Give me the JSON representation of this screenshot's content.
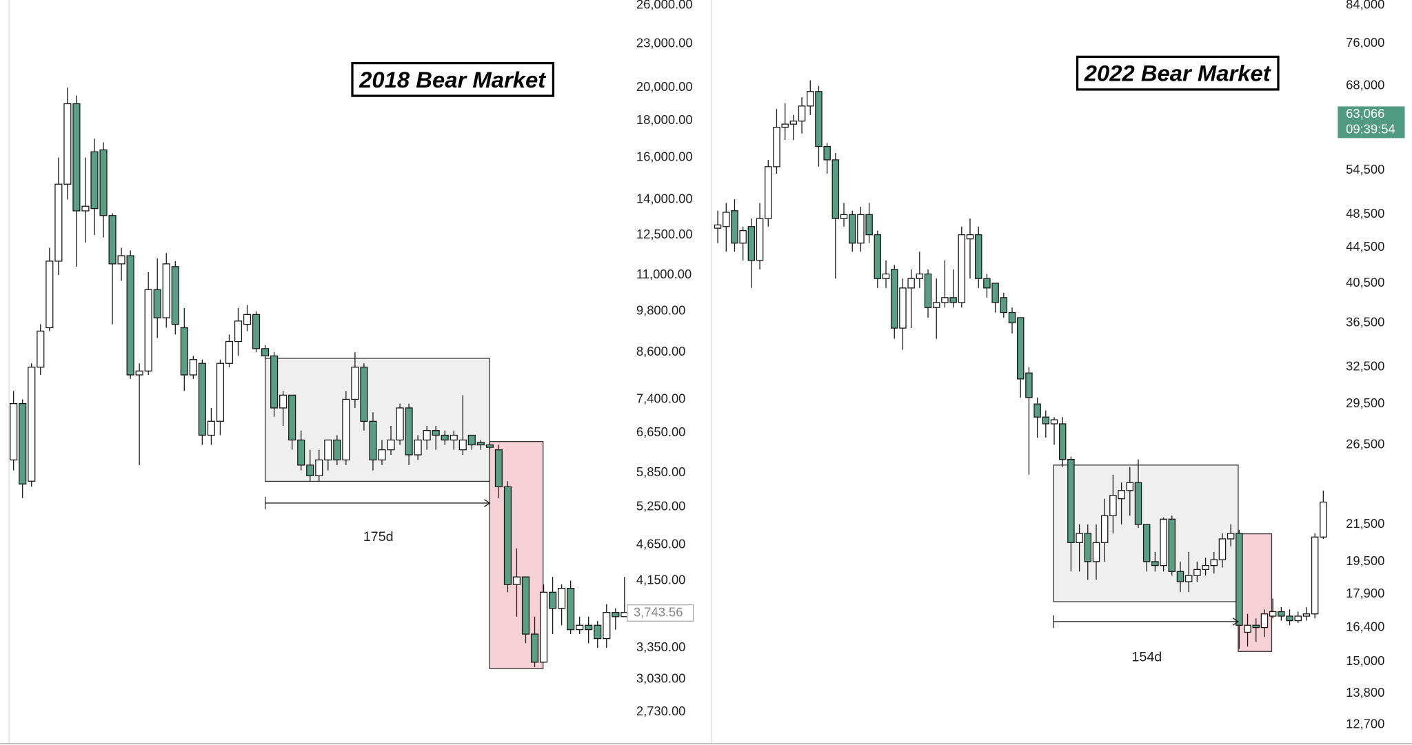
{
  "chart_data": [
    {
      "type": "candlestick",
      "title": "2018 Bear Market",
      "log_scale": true,
      "down_color": "#5a9e86",
      "up_color": "#ffffff",
      "ylim": [
        2460,
        26450
      ],
      "yticks": [
        {
          "value": 26000,
          "label": "26,000.00"
        },
        {
          "value": 23000,
          "label": "23,000.00"
        },
        {
          "value": 20000,
          "label": "20,000.00"
        },
        {
          "value": 18000,
          "label": "18,000.00"
        },
        {
          "value": 16000,
          "label": "16,000.00"
        },
        {
          "value": 14000,
          "label": "14,000.00"
        },
        {
          "value": 12500,
          "label": "12,500.00"
        },
        {
          "value": 11000,
          "label": "11,000.00"
        },
        {
          "value": 9800,
          "label": "9,800.00"
        },
        {
          "value": 8600,
          "label": "8,600.00"
        },
        {
          "value": 7400,
          "label": "7,400.00"
        },
        {
          "value": 6650,
          "label": "6,650.00"
        },
        {
          "value": 5850,
          "label": "5,850.00"
        },
        {
          "value": 5250,
          "label": "5,250.00"
        },
        {
          "value": 4650,
          "label": "4,650.00"
        },
        {
          "value": 4150,
          "label": "4,150.00"
        },
        {
          "value": 3350,
          "label": "3,350.00"
        },
        {
          "value": 3030,
          "label": "3,030.00"
        },
        {
          "value": 2730,
          "label": "2,730.00"
        }
      ],
      "last_price": {
        "value": 3743.56,
        "label": "3,743.56"
      },
      "range_label": "175d",
      "open": [
        6100,
        7300,
        5700,
        8200,
        9300,
        11500,
        14700,
        19000,
        13500,
        16300,
        16400,
        13300,
        11400,
        11700,
        8000,
        8100,
        10500,
        9600,
        11300,
        9300,
        8000,
        8300,
        6600,
        6900,
        8300,
        8900,
        9400,
        9700,
        8700,
        8500,
        7200,
        7500,
        6500,
        6000,
        5800,
        6100,
        6500,
        6100,
        7400,
        8200,
        6900,
        6100,
        6300,
        6500,
        7200,
        6200,
        6500,
        6700,
        6600,
        6500,
        6300,
        6600,
        6450,
        6400,
        6300,
        5600,
        4100,
        4200,
        3500,
        3200,
        4000,
        3800,
        4050,
        3550,
        3600,
        3600,
        3450,
        3750,
        3700
      ],
      "high": [
        7600,
        7400,
        8300,
        9400,
        12000,
        16000,
        20000,
        19500,
        16000,
        17000,
        16800,
        13400,
        12000,
        11900,
        8300,
        11100,
        11600,
        11800,
        11500,
        9900,
        8500,
        8400,
        7200,
        8400,
        9100,
        9900,
        10000,
        9800,
        8800,
        8600,
        7600,
        7500,
        6700,
        6300,
        6300,
        6500,
        6600,
        7600,
        8600,
        8300,
        7100,
        6500,
        6800,
        7300,
        7300,
        6600,
        6800,
        6800,
        6700,
        6700,
        7500,
        6600,
        6500,
        6450,
        6400,
        5700,
        4600,
        4200,
        3700,
        4100,
        4200,
        4100,
        4150,
        3700,
        3700,
        3650,
        3850,
        3800,
        4200
      ],
      "low": [
        5900,
        5400,
        5600,
        8000,
        9200,
        11000,
        14000,
        11300,
        12200,
        12500,
        12400,
        9400,
        10800,
        7900,
        6000,
        8000,
        9000,
        9300,
        9100,
        7600,
        7900,
        6400,
        6400,
        6600,
        8200,
        8500,
        9200,
        8600,
        8400,
        7000,
        6800,
        6300,
        5900,
        5700,
        5700,
        5900,
        6000,
        6000,
        7200,
        6700,
        5900,
        6000,
        6200,
        6400,
        6000,
        6100,
        6300,
        6300,
        6400,
        6300,
        6200,
        6300,
        6300,
        6300,
        5400,
        4000,
        3700,
        3400,
        3150,
        3200,
        3500,
        3600,
        3500,
        3500,
        3400,
        3350,
        3350,
        3550,
        3700
      ],
      "close": [
        7300,
        5650,
        8200,
        9200,
        11500,
        14700,
        19000,
        13500,
        13700,
        13600,
        13300,
        11400,
        11700,
        8000,
        8100,
        10500,
        9600,
        11400,
        9400,
        8000,
        8400,
        6600,
        6900,
        8300,
        8900,
        9500,
        9700,
        8700,
        8500,
        7200,
        7500,
        6500,
        6000,
        5800,
        6100,
        6500,
        6100,
        7400,
        8200,
        6900,
        6100,
        6300,
        6500,
        7200,
        6200,
        6500,
        6700,
        6600,
        6500,
        6600,
        6500,
        6400,
        6400,
        6350,
        5600,
        4100,
        4200,
        3500,
        3200,
        4000,
        3800,
        4050,
        3550,
        3600,
        3550,
        3450,
        3750,
        3700,
        3750
      ]
    },
    {
      "type": "candlestick",
      "title": "2022 Bear Market",
      "log_scale": true,
      "down_color": "#5a9e86",
      "up_color": "#ffffff",
      "ylim": [
        12060,
        85200
      ],
      "yticks": [
        {
          "value": 84000,
          "label": "84,000"
        },
        {
          "value": 76000,
          "label": "76,000"
        },
        {
          "value": 68000,
          "label": "68,000"
        },
        {
          "value": 54500,
          "label": "54,500"
        },
        {
          "value": 48500,
          "label": "48,500"
        },
        {
          "value": 44500,
          "label": "44,500"
        },
        {
          "value": 40500,
          "label": "40,500"
        },
        {
          "value": 36500,
          "label": "36,500"
        },
        {
          "value": 32500,
          "label": "32,500"
        },
        {
          "value": 29500,
          "label": "29,500"
        },
        {
          "value": 26500,
          "label": "26,500"
        },
        {
          "value": 21500,
          "label": "21,500"
        },
        {
          "value": 19500,
          "label": "19,500"
        },
        {
          "value": 17900,
          "label": "17,900"
        },
        {
          "value": 16400,
          "label": "16,400"
        },
        {
          "value": 15000,
          "label": "15,000"
        },
        {
          "value": 13800,
          "label": "13,800"
        },
        {
          "value": 12700,
          "label": "12,700"
        }
      ],
      "last_price": {
        "value": 63066,
        "label": "63,066"
      },
      "countdown": "09:39:54",
      "last_price_color": "#4f9a80",
      "range_label": "154d",
      "open": [
        46800,
        47000,
        49000,
        45000,
        47000,
        43000,
        48000,
        55000,
        61000,
        61500,
        62000,
        64500,
        67000,
        58000,
        56000,
        48000,
        48500,
        45000,
        48500,
        46000,
        41000,
        42000,
        36000,
        40000,
        41000,
        41500,
        38000,
        38500,
        39000,
        38500,
        45500,
        46000,
        41000,
        40500,
        39000,
        37500,
        37000,
        32000,
        29500,
        28500,
        28000,
        28000,
        25500,
        20500,
        21000,
        19500,
        20500,
        22000,
        23000,
        23500,
        24000,
        21500,
        19500,
        19300,
        21800,
        19000,
        18500,
        18800,
        19100,
        19300,
        19600,
        20700,
        21000,
        16200,
        16500,
        16400,
        16900,
        17100,
        16900,
        16700,
        16900,
        17000,
        20800
      ],
      "high": [
        49000,
        50000,
        50500,
        47000,
        48000,
        50000,
        56000,
        64000,
        65000,
        63000,
        66000,
        69000,
        68000,
        58500,
        57000,
        50000,
        49000,
        49500,
        50000,
        46500,
        43000,
        42500,
        41000,
        42000,
        44000,
        42000,
        41000,
        43000,
        42000,
        47000,
        48000,
        47000,
        41500,
        40500,
        39500,
        38000,
        37000,
        32500,
        30000,
        29000,
        28500,
        28500,
        25700,
        21500,
        21500,
        21500,
        23000,
        24500,
        24000,
        25000,
        25500,
        21500,
        20000,
        21900,
        22000,
        19500,
        20000,
        19500,
        19700,
        20000,
        21000,
        21500,
        21200,
        17000,
        16800,
        17200,
        17700,
        17300,
        17200,
        17100,
        17300,
        21000,
        23500
      ],
      "low": [
        45000,
        44000,
        44000,
        43000,
        40000,
        42000,
        47000,
        54000,
        59000,
        59000,
        60000,
        63000,
        55000,
        54000,
        41000,
        47000,
        44000,
        44000,
        45000,
        40000,
        40000,
        35000,
        34000,
        36000,
        40000,
        37000,
        35000,
        38000,
        38000,
        38000,
        41000,
        40000,
        39000,
        37500,
        37000,
        35500,
        30000,
        24500,
        27000,
        27000,
        26500,
        25000,
        19000,
        19000,
        18600,
        18600,
        19500,
        21000,
        21500,
        22000,
        21300,
        19000,
        19000,
        19000,
        18800,
        18000,
        18000,
        18500,
        18800,
        18900,
        19200,
        20300,
        15500,
        15600,
        15800,
        16000,
        16800,
        16700,
        16500,
        16600,
        16700,
        16800,
        20700
      ],
      "close": [
        47200,
        48800,
        45000,
        46500,
        43000,
        48000,
        55000,
        61000,
        61500,
        62000,
        64500,
        67000,
        58000,
        56000,
        48000,
        48500,
        45000,
        48500,
        46000,
        41000,
        41500,
        36000,
        40000,
        41000,
        41500,
        38000,
        38500,
        39000,
        38500,
        46000,
        46000,
        41000,
        40000,
        38500,
        37500,
        36500,
        31500,
        30000,
        28500,
        28000,
        28300,
        25500,
        20500,
        21000,
        19500,
        20500,
        22000,
        23200,
        23500,
        24000,
        21500,
        19500,
        19300,
        21800,
        19000,
        18500,
        18800,
        19100,
        19300,
        19600,
        20700,
        21000,
        16500,
        16500,
        16400,
        17000,
        17100,
        16900,
        16700,
        16900,
        17000,
        20800,
        22800
      ]
    }
  ]
}
